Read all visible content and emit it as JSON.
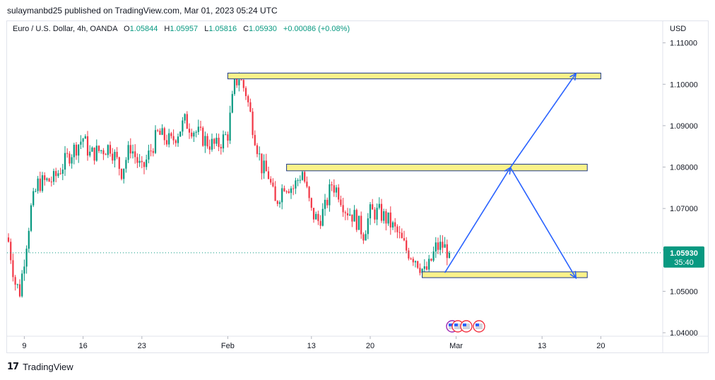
{
  "header": {
    "publish_line": "sulaymanbd25 published on TradingView.com, Mar 01, 2023 05:24 UTC"
  },
  "legend": {
    "symbol": "Euro / U.S. Dollar, 4h, OANDA",
    "open_label": "O",
    "open": "1.05844",
    "high_label": "H",
    "high": "1.05957",
    "low_label": "L",
    "low": "1.05816",
    "close_label": "C",
    "close": "1.05930",
    "change": "+0.00086 (+0.08%)"
  },
  "footer": {
    "brand": "TradingView",
    "logo_text": "17"
  },
  "colors": {
    "up": "#089981",
    "down": "#f23645",
    "zone_fill": "#fbf28a",
    "zone_border": "#1e3a8a",
    "arrow": "#2962ff",
    "price_label": "#089981"
  },
  "chart_data": {
    "type": "candlestick",
    "symbol": "EURUSD",
    "interval": "4h",
    "currency": "USD",
    "ylim": [
      1.0395,
      1.1125
    ],
    "y_ticks": [
      "1.11000",
      "1.10000",
      "1.09000",
      "1.08000",
      "1.07000",
      "1.06000",
      "1.05000",
      "1.04000"
    ],
    "x_ticks": [
      "9",
      "16",
      "23",
      "Feb",
      "13",
      "20",
      "Mar",
      "13",
      "20"
    ],
    "last_price": {
      "value": 1.0593,
      "label": "1.05930",
      "countdown": "35:40"
    },
    "anchors": [
      {
        "i": 0,
        "p": 1.062
      },
      {
        "i": 3,
        "p": 1.052
      },
      {
        "i": 5,
        "p": 1.05
      },
      {
        "i": 10,
        "p": 1.07
      },
      {
        "i": 13,
        "p": 1.076
      },
      {
        "i": 20,
        "p": 1.077
      },
      {
        "i": 27,
        "p": 1.083
      },
      {
        "i": 33,
        "p": 1.087
      },
      {
        "i": 36,
        "p": 1.083
      },
      {
        "i": 45,
        "p": 1.085
      },
      {
        "i": 50,
        "p": 1.079
      },
      {
        "i": 54,
        "p": 1.085
      },
      {
        "i": 59,
        "p": 1.079
      },
      {
        "i": 66,
        "p": 1.088
      },
      {
        "i": 72,
        "p": 1.086
      },
      {
        "i": 78,
        "p": 1.091
      },
      {
        "i": 84,
        "p": 1.088
      },
      {
        "i": 88,
        "p": 1.086
      },
      {
        "i": 92,
        "p": 1.085
      },
      {
        "i": 97,
        "p": 1.088
      },
      {
        "i": 100,
        "p": 1.1
      },
      {
        "i": 102,
        "p": 1.1018
      },
      {
        "i": 105,
        "p": 1.098
      },
      {
        "i": 108,
        "p": 1.09
      },
      {
        "i": 112,
        "p": 1.08
      },
      {
        "i": 115,
        "p": 1.078
      },
      {
        "i": 118,
        "p": 1.071
      },
      {
        "i": 122,
        "p": 1.076
      },
      {
        "i": 126,
        "p": 1.075
      },
      {
        "i": 130,
        "p": 1.079
      },
      {
        "i": 134,
        "p": 1.069
      },
      {
        "i": 137,
        "p": 1.067
      },
      {
        "i": 140,
        "p": 1.07
      },
      {
        "i": 143,
        "p": 1.076
      },
      {
        "i": 146,
        "p": 1.074
      },
      {
        "i": 149,
        "p": 1.07
      },
      {
        "i": 153,
        "p": 1.068
      },
      {
        "i": 157,
        "p": 1.064
      },
      {
        "i": 160,
        "p": 1.069
      },
      {
        "i": 164,
        "p": 1.069
      },
      {
        "i": 168,
        "p": 1.067
      },
      {
        "i": 172,
        "p": 1.064
      },
      {
        "i": 176,
        "p": 1.06
      },
      {
        "i": 180,
        "p": 1.058
      },
      {
        "i": 184,
        "p": 1.0545
      },
      {
        "i": 186,
        "p": 1.056
      },
      {
        "i": 189,
        "p": 1.0605
      },
      {
        "i": 192,
        "p": 1.061
      },
      {
        "i": 195,
        "p": 1.0593
      }
    ],
    "annotations": {
      "zones": [
        {
          "name": "resistance-zone-high",
          "x_from": 1.0,
          "x_to": 1.0,
          "from_bar": 97,
          "to_date_bar": 262,
          "top": 1.1027,
          "bottom": 1.1013
        },
        {
          "name": "resistance-zone-mid",
          "from_bar": 123,
          "to_date_bar": 256,
          "top": 1.0807,
          "bottom": 1.0791
        },
        {
          "name": "support-zone",
          "from_bar": 183,
          "to_date_bar": 256,
          "top": 1.0547,
          "bottom": 1.0533
        }
      ],
      "arrow_path_bars": [
        [
          193,
          1.0545
        ],
        [
          222,
          1.0799
        ],
        [
          251,
          1.0532
        ]
      ],
      "arrow_path_bars_2": [
        [
          222,
          1.0799
        ],
        [
          251,
          1.1026
        ]
      ]
    }
  }
}
